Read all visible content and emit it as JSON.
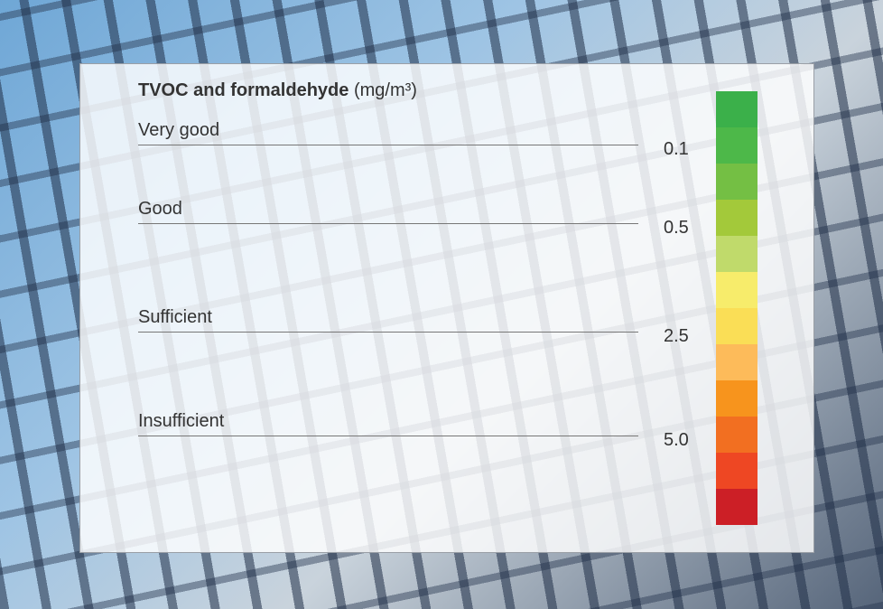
{
  "title": "TVOC and formaldehyde",
  "unit": "(mg/m³)",
  "levels": [
    {
      "label": "Very good",
      "threshold": "0.1"
    },
    {
      "label": "Good",
      "threshold": "0.5"
    },
    {
      "label": "Sufficient",
      "threshold": "2.5"
    },
    {
      "label": "Insufficient",
      "threshold": "5.0"
    }
  ],
  "scale_colors": [
    "#3bb04a",
    "#4db849",
    "#74bf44",
    "#a3c93a",
    "#c0da6b",
    "#f7ec6b",
    "#fade56",
    "#fdbb5a",
    "#f7941d",
    "#f26f21",
    "#ee4723",
    "#cc1f26"
  ]
}
